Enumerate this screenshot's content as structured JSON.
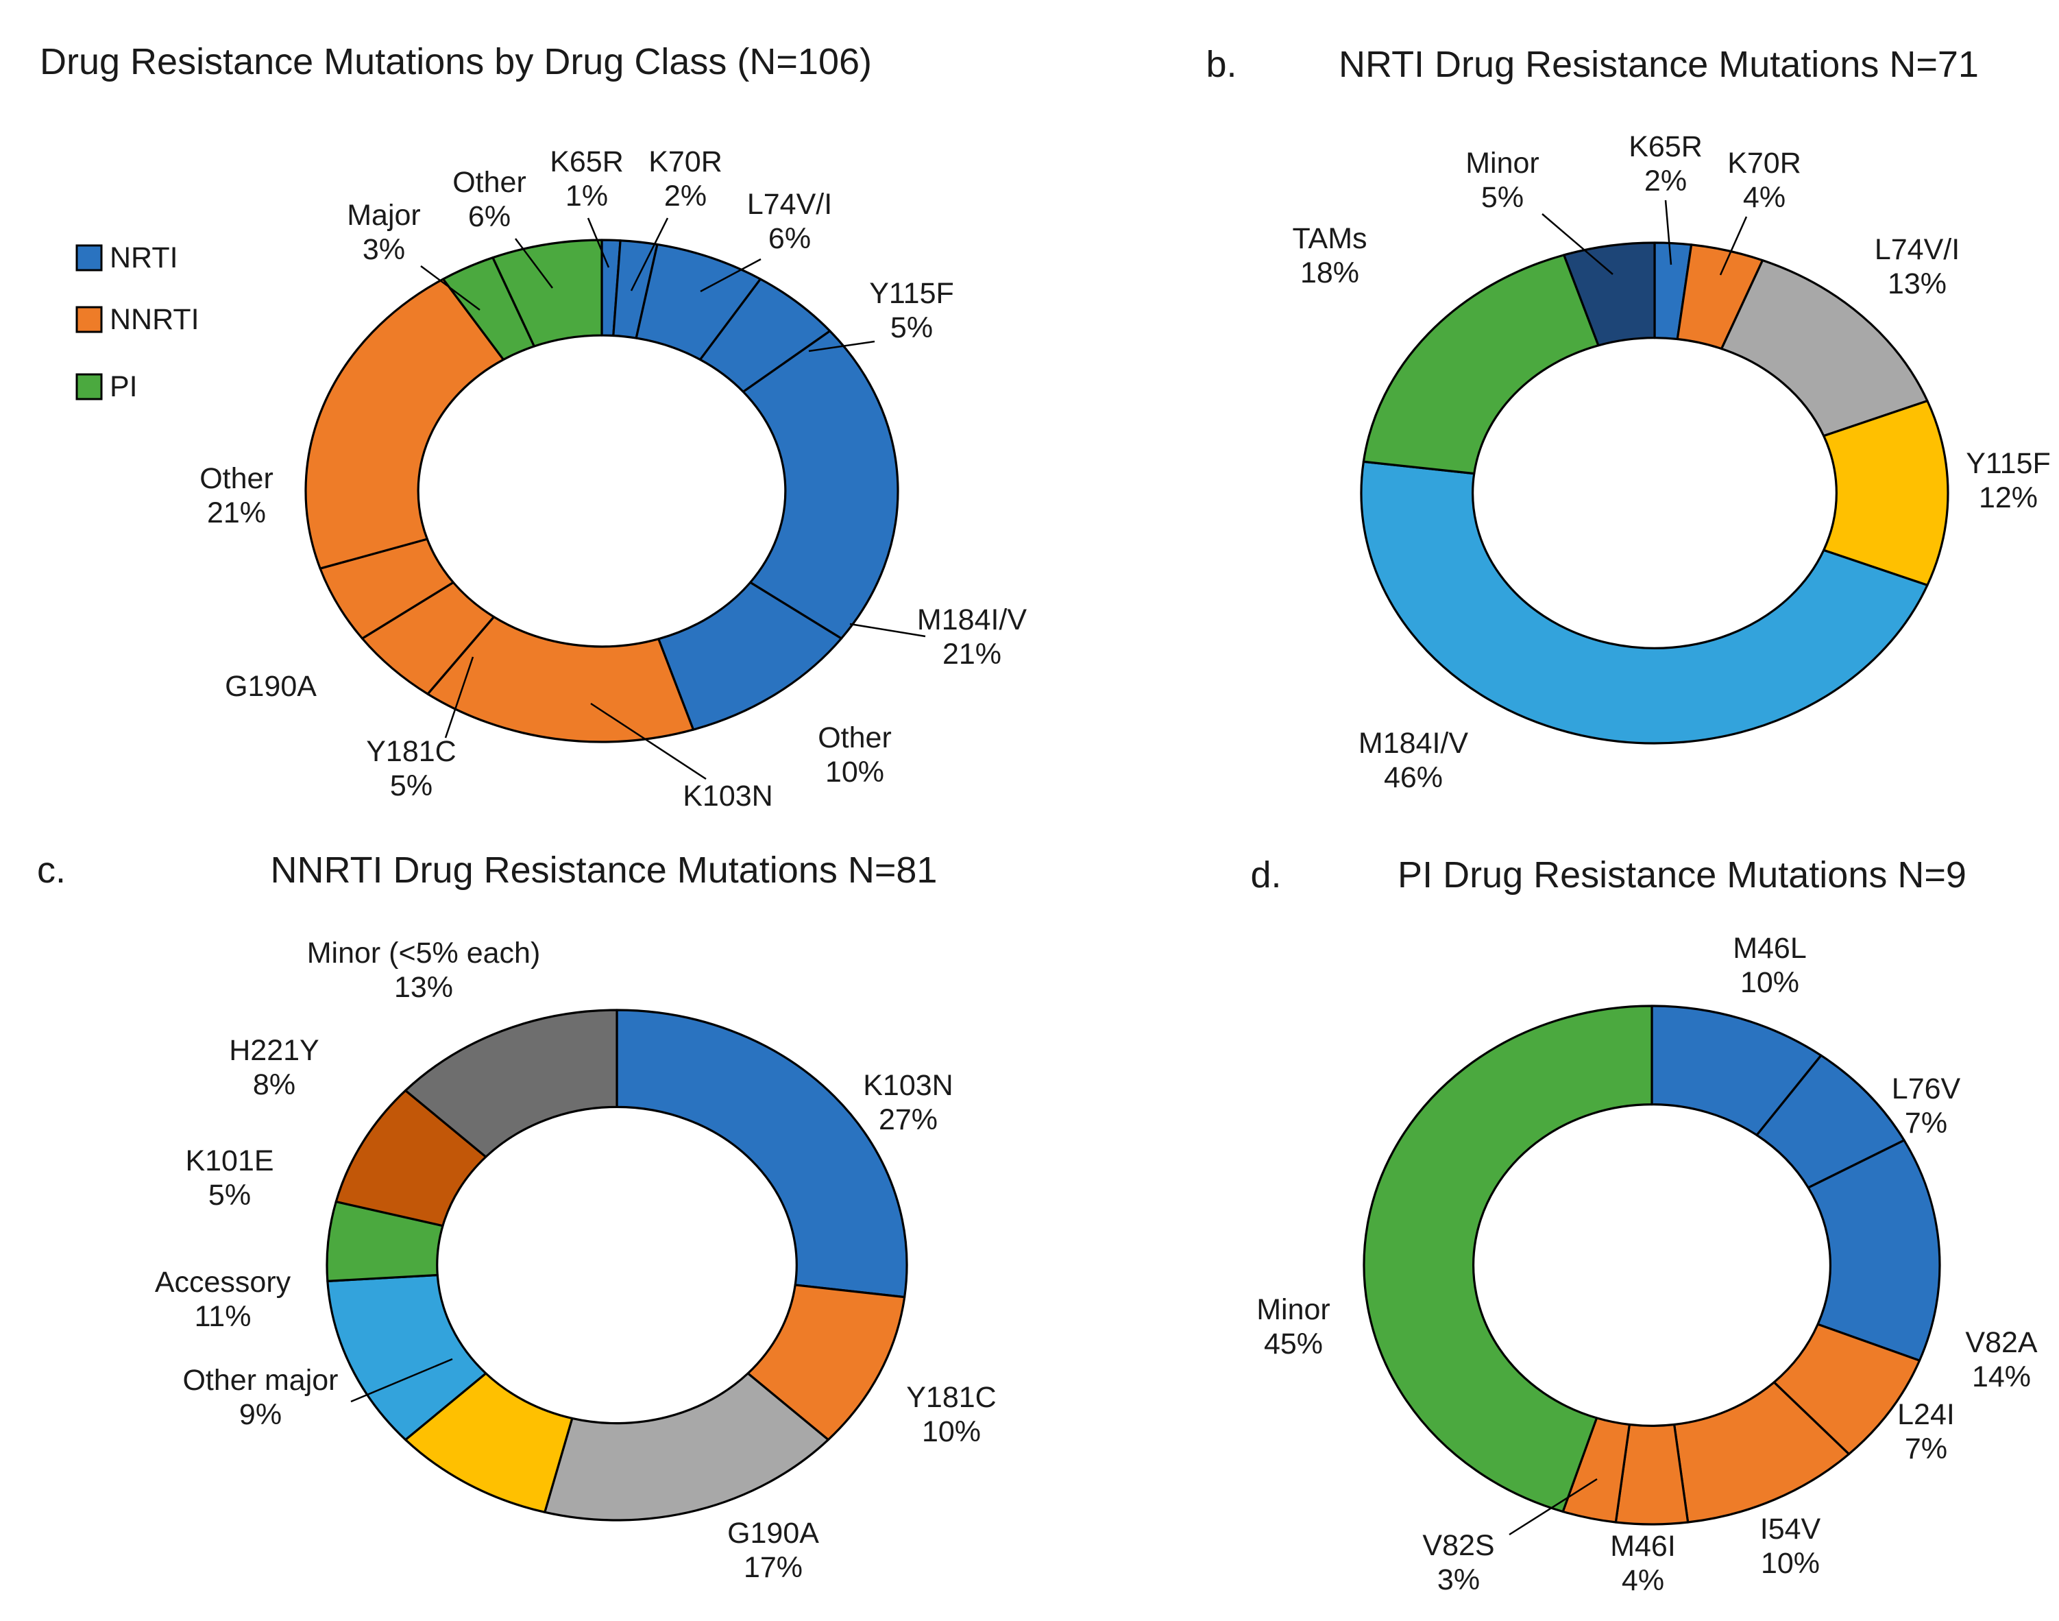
{
  "chart_data": [
    {
      "type": "donut",
      "panel_letter": "",
      "title": "Drug Resistance Mutations by Drug Class (N=106)",
      "n_total": 106,
      "legend_position": "left",
      "legend": [
        {
          "label": "NRTI",
          "color": "#2A73C0"
        },
        {
          "label": "NNRTI",
          "color": "#EE7C28"
        },
        {
          "label": "PI",
          "color": "#4BA93F"
        }
      ],
      "segments": [
        {
          "label": "K65R",
          "pct_text": "1%",
          "value": 1,
          "color": "#2A73C0",
          "drug_class": "NRTI"
        },
        {
          "label": "K70R",
          "pct_text": "2%",
          "value": 2,
          "color": "#2A73C0",
          "drug_class": "NRTI"
        },
        {
          "label": "L74V/I",
          "pct_text": "6%",
          "value": 6,
          "color": "#2A73C0",
          "drug_class": "NRTI"
        },
        {
          "label": "Y115F",
          "pct_text": "5%",
          "value": 5,
          "color": "#2A73C0",
          "drug_class": "NRTI"
        },
        {
          "label": "M184I/V",
          "pct_text": "21%",
          "value": 21,
          "color": "#2A73C0",
          "drug_class": "NRTI"
        },
        {
          "label": "Other",
          "pct_text": "10%",
          "value": 10,
          "color": "#2A73C0",
          "drug_class": "NRTI"
        },
        {
          "label": "K103N",
          "pct_text": "",
          "value": 15,
          "color": "#EE7C28",
          "drug_class": "NNRTI"
        },
        {
          "label": "Y181C",
          "pct_text": "5%",
          "value": 5,
          "color": "#EE7C28",
          "drug_class": "NNRTI"
        },
        {
          "label": "G190A",
          "pct_text": "",
          "value": 5,
          "color": "#EE7C28",
          "drug_class": "NNRTI"
        },
        {
          "label": "Other",
          "pct_text": "21%",
          "value": 21,
          "color": "#EE7C28",
          "drug_class": "NNRTI"
        },
        {
          "label": "Major",
          "pct_text": "3%",
          "value": 3,
          "color": "#4BA93F",
          "drug_class": "PI"
        },
        {
          "label": "Other",
          "pct_text": "6%",
          "value": 6,
          "color": "#4BA93F",
          "drug_class": "PI"
        }
      ]
    },
    {
      "type": "donut",
      "panel_letter": "b.",
      "title": "NRTI Drug Resistance Mutations N=71",
      "n_total": 71,
      "segments": [
        {
          "label": "K65R",
          "pct_text": "2%",
          "value": 2,
          "color": "#2A73C0"
        },
        {
          "label": "K70R",
          "pct_text": "4%",
          "value": 4,
          "color": "#EE7C28"
        },
        {
          "label": "L74V/I",
          "pct_text": "13%",
          "value": 13,
          "color": "#A8A8A8"
        },
        {
          "label": "Y115F",
          "pct_text": "12%",
          "value": 12,
          "color": "#FFC000"
        },
        {
          "label": "M184I/V",
          "pct_text": "46%",
          "value": 46,
          "color": "#33A3DC"
        },
        {
          "label": "TAMs",
          "pct_text": "18%",
          "value": 18,
          "color": "#4BA93F"
        },
        {
          "label": "Minor",
          "pct_text": "5%",
          "value": 5,
          "color": "#1D4577"
        }
      ]
    },
    {
      "type": "donut",
      "panel_letter": "c.",
      "title": "NNRTI Drug Resistance Mutations N=81",
      "n_total": 81,
      "segments": [
        {
          "label": "K103N",
          "pct_text": "27%",
          "value": 27,
          "color": "#2A73C0"
        },
        {
          "label": "Y181C",
          "pct_text": "10%",
          "value": 10,
          "color": "#EE7C28"
        },
        {
          "label": "G190A",
          "pct_text": "17%",
          "value": 17,
          "color": "#A8A8A8"
        },
        {
          "label": "Other major",
          "pct_text": "9%",
          "value": 9,
          "color": "#FFC000"
        },
        {
          "label": "Accessory",
          "pct_text": "11%",
          "value": 11,
          "color": "#33A3DC"
        },
        {
          "label": "K101E",
          "pct_text": "5%",
          "value": 5,
          "color": "#4BA93F"
        },
        {
          "label": "H221Y",
          "pct_text": "8%",
          "value": 8,
          "color": "#C25708"
        },
        {
          "label": "Minor (<5% each)",
          "pct_text": "13%",
          "value": 13,
          "color": "#6E6E6E"
        }
      ]
    },
    {
      "type": "donut",
      "panel_letter": "d.",
      "title": "PI Drug Resistance Mutations N=9",
      "n_total": 9,
      "segments": [
        {
          "label": "M46L",
          "pct_text": "10%",
          "value": 10,
          "color": "#2A73C0"
        },
        {
          "label": "L76V",
          "pct_text": "7%",
          "value": 7,
          "color": "#2A73C0"
        },
        {
          "label": "V82A",
          "pct_text": "14%",
          "value": 14,
          "color": "#2A73C0"
        },
        {
          "label": "L24I",
          "pct_text": "7%",
          "value": 7,
          "color": "#EE7C28"
        },
        {
          "label": "I54V",
          "pct_text": "10%",
          "value": 10,
          "color": "#EE7C28"
        },
        {
          "label": "M46I",
          "pct_text": "4%",
          "value": 4,
          "color": "#EE7C28"
        },
        {
          "label": "V82S",
          "pct_text": "3%",
          "value": 3,
          "color": "#EE7C28"
        },
        {
          "label": "Minor",
          "pct_text": "45%",
          "value": 45,
          "color": "#4BA93F"
        }
      ]
    }
  ]
}
